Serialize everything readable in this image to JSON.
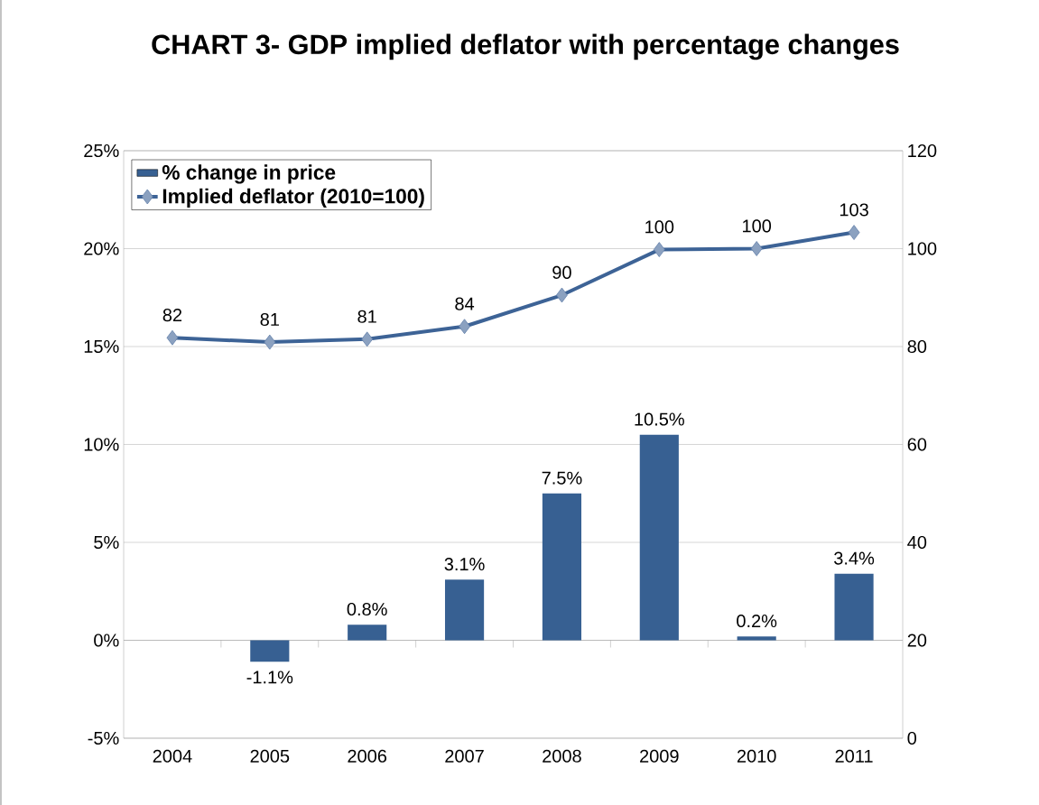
{
  "chart_data": {
    "type": "bar",
    "title": "CHART 3- GDP implied deflator with percentage changes",
    "categories": [
      "2004",
      "2005",
      "2006",
      "2007",
      "2008",
      "2009",
      "2010",
      "2011"
    ],
    "series": [
      {
        "name": "% change in price",
        "color": "#376092",
        "values": [
          null,
          -1.1,
          0.8,
          3.1,
          7.5,
          10.5,
          0.2,
          3.4
        ],
        "value_labels": [
          null,
          "-1.1%",
          "0.8%",
          "3.1%",
          "7.5%",
          "10.5%",
          "0.2%",
          "3.4%"
        ]
      },
      {
        "name": "Implied deflator (2010=100)",
        "type": "line",
        "axis": "y2",
        "color": "#3d6396",
        "marker": "diamond",
        "values": [
          81.8,
          80.9,
          81.5,
          84.1,
          90.5,
          99.8,
          100,
          103.3
        ],
        "value_labels": [
          "82",
          "81",
          "81",
          "84",
          "90",
          "100",
          "100",
          "103"
        ]
      }
    ],
    "ylim": [
      -5,
      25
    ],
    "yticks": [
      {
        "value": -5,
        "label": "-5%"
      },
      {
        "value": 0,
        "label": "0%"
      },
      {
        "value": 5,
        "label": "5%"
      },
      {
        "value": 10,
        "label": "10%"
      },
      {
        "value": 15,
        "label": "15%"
      },
      {
        "value": 20,
        "label": "20%"
      },
      {
        "value": 25,
        "label": "25%"
      }
    ],
    "y2lim": [
      0,
      120
    ],
    "y2ticks": [
      0,
      20,
      40,
      60,
      80,
      100,
      120
    ],
    "grid": "y",
    "legend": "top left"
  }
}
